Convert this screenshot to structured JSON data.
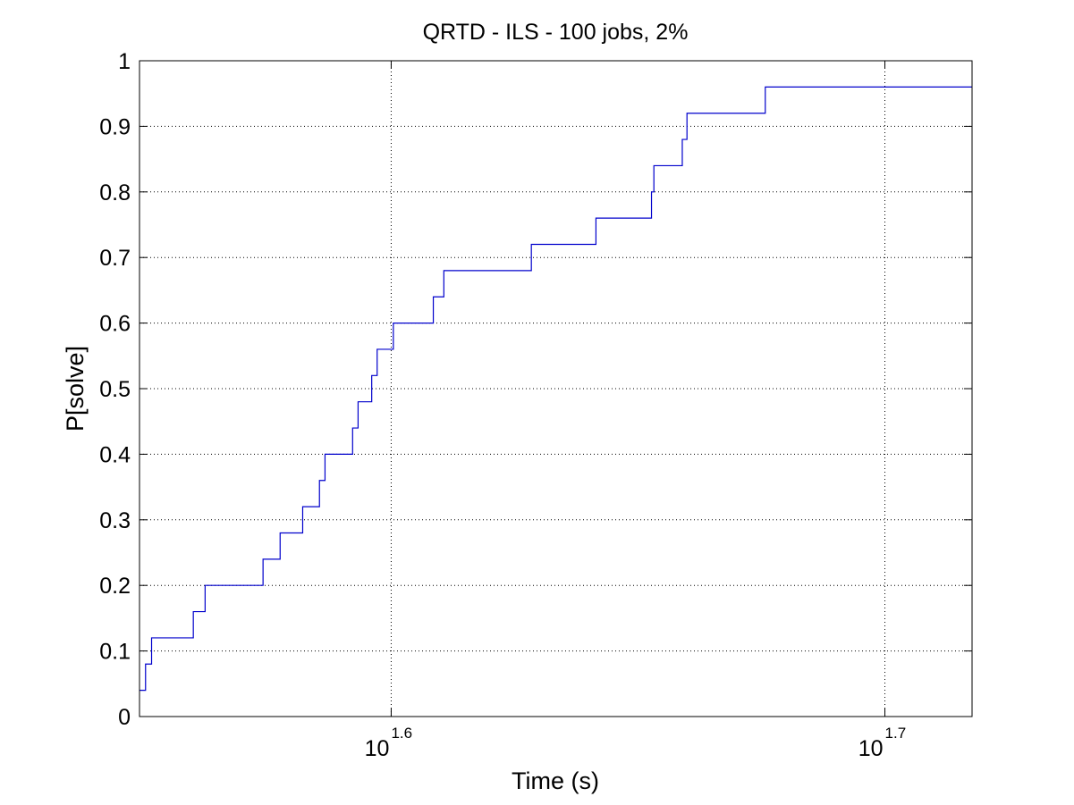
{
  "chart_data": {
    "type": "line",
    "title": "QRTD - ILS - 100 jobs, 2%",
    "xlabel": "Time (s)",
    "ylabel": "P[solve]",
    "x_scale": "log10",
    "xlim": [
      35.4,
      52.2
    ],
    "ylim": [
      0,
      1
    ],
    "grid": true,
    "x_ticks": [
      {
        "value": 39.81,
        "base": "10",
        "exp": "1.6"
      },
      {
        "value": 50.12,
        "base": "10",
        "exp": "1.7"
      }
    ],
    "y_ticks": [
      {
        "value": 0,
        "label": "0"
      },
      {
        "value": 0.1,
        "label": "0.1"
      },
      {
        "value": 0.2,
        "label": "0.2"
      },
      {
        "value": 0.3,
        "label": "0.3"
      },
      {
        "value": 0.4,
        "label": "0.4"
      },
      {
        "value": 0.5,
        "label": "0.5"
      },
      {
        "value": 0.6,
        "label": "0.6"
      },
      {
        "value": 0.7,
        "label": "0.7"
      },
      {
        "value": 0.8,
        "label": "0.8"
      },
      {
        "value": 0.9,
        "label": "0.9"
      },
      {
        "value": 1,
        "label": "1"
      }
    ],
    "series": [
      {
        "color": "#0000cc",
        "step": true,
        "points": [
          {
            "x": 35.4,
            "y": 0.04
          },
          {
            "x": 35.5,
            "y": 0.08
          },
          {
            "x": 35.6,
            "y": 0.12
          },
          {
            "x": 36.3,
            "y": 0.16
          },
          {
            "x": 36.5,
            "y": 0.2
          },
          {
            "x": 37.5,
            "y": 0.24
          },
          {
            "x": 37.8,
            "y": 0.28
          },
          {
            "x": 38.2,
            "y": 0.32
          },
          {
            "x": 38.5,
            "y": 0.36
          },
          {
            "x": 38.6,
            "y": 0.4
          },
          {
            "x": 39.1,
            "y": 0.44
          },
          {
            "x": 39.2,
            "y": 0.48
          },
          {
            "x": 39.45,
            "y": 0.52
          },
          {
            "x": 39.55,
            "y": 0.56
          },
          {
            "x": 39.85,
            "y": 0.6
          },
          {
            "x": 40.6,
            "y": 0.64
          },
          {
            "x": 40.8,
            "y": 0.68
          },
          {
            "x": 42.5,
            "y": 0.72
          },
          {
            "x": 43.8,
            "y": 0.76
          },
          {
            "x": 44.95,
            "y": 0.8
          },
          {
            "x": 45.0,
            "y": 0.84
          },
          {
            "x": 45.6,
            "y": 0.88
          },
          {
            "x": 45.7,
            "y": 0.92
          },
          {
            "x": 47.4,
            "y": 0.96
          },
          {
            "x": 52.2,
            "y": 0.96
          }
        ]
      }
    ]
  }
}
